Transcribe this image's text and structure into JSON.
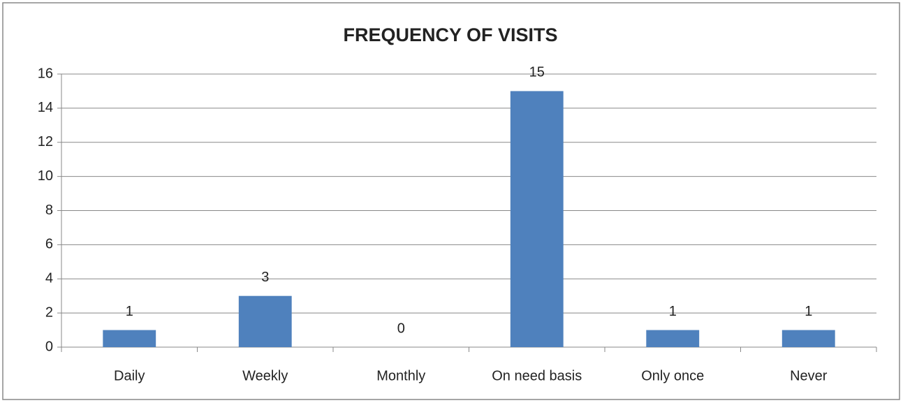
{
  "chart_data": {
    "type": "bar",
    "title": "FREQUENCY OF VISITS",
    "categories": [
      "Daily",
      "Weekly",
      "Monthly",
      "On need basis",
      "Only once",
      "Never"
    ],
    "values": [
      1,
      3,
      0,
      15,
      1,
      1
    ],
    "color": "#4f81bd",
    "ylim": [
      0,
      16
    ],
    "yticks": [
      0,
      2,
      4,
      6,
      8,
      10,
      12,
      14,
      16
    ],
    "grid": true
  }
}
